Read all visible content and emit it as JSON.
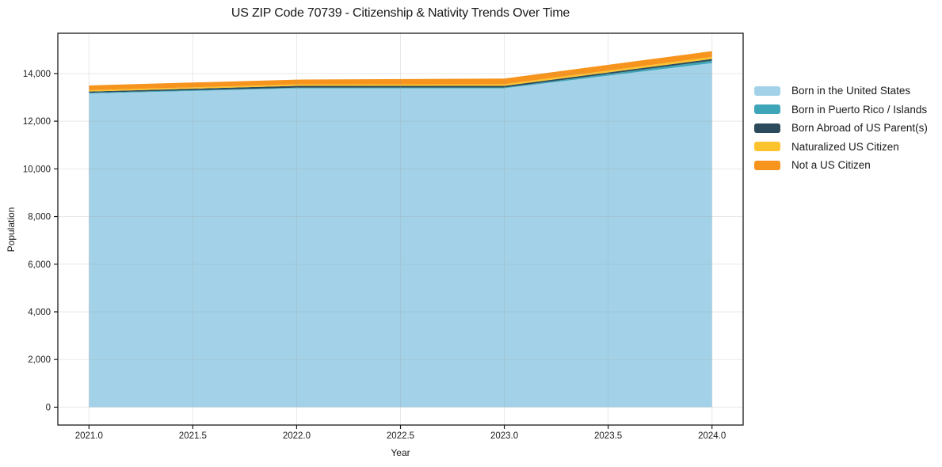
{
  "title": "US ZIP Code 70739 - Citizenship & Nativity Trends Over Time",
  "chart_data": {
    "type": "area",
    "stacked": true,
    "title": "US ZIP Code 70739 - Citizenship & Nativity Trends Over Time",
    "xlabel": "Year",
    "ylabel": "Population",
    "x": [
      2021,
      2022,
      2023,
      2024
    ],
    "series": [
      {
        "name": "Born in the United States",
        "color": "#A3D2E8",
        "values": [
          13160,
          13380,
          13380,
          14440
        ]
      },
      {
        "name": "Born in Puerto Rico / Islands",
        "color": "#3FA5B9",
        "values": [
          35,
          25,
          35,
          100
        ]
      },
      {
        "name": "Born Abroad of US Parent(s)",
        "color": "#2B4B5C",
        "values": [
          50,
          75,
          65,
          70
        ]
      },
      {
        "name": "Naturalized US Citizen",
        "color": "#FDC32F",
        "values": [
          55,
          65,
          70,
          90
        ]
      },
      {
        "name": "Not a US Citizen",
        "color": "#F6941E",
        "values": [
          200,
          200,
          240,
          240
        ]
      }
    ],
    "totals": [
      13500,
      13745,
      13790,
      14940
    ],
    "xlim": [
      2020.85,
      2024.15
    ],
    "ylim": [
      -750,
      15690
    ],
    "xticks": {
      "values": [
        2021.0,
        2021.5,
        2022.0,
        2022.5,
        2023.0,
        2023.5,
        2024.0
      ],
      "labels": [
        "2021.0",
        "2021.5",
        "2022.0",
        "2022.5",
        "2023.0",
        "2023.5",
        "2024.0"
      ]
    },
    "yticks": {
      "values": [
        0,
        2000,
        4000,
        6000,
        8000,
        10000,
        12000,
        14000
      ],
      "labels": [
        "0",
        "2,000",
        "4,000",
        "6,000",
        "8,000",
        "10,000",
        "12,000",
        "14,000"
      ]
    },
    "grid": true,
    "legend_position": "right"
  }
}
